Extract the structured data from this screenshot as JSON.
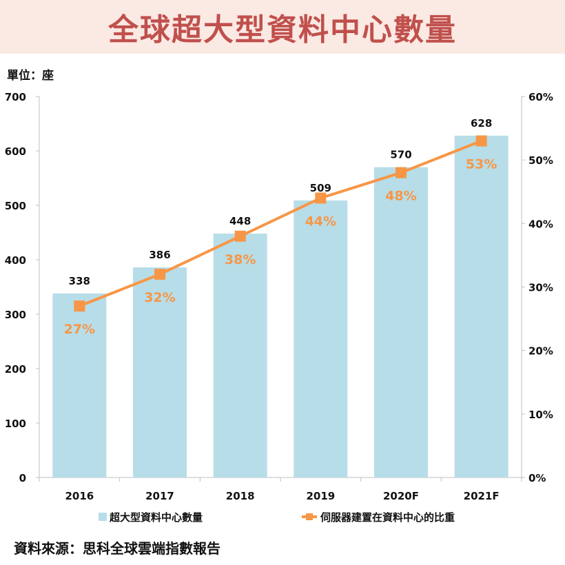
{
  "header": {
    "title": "全球超大型資料中心數量"
  },
  "unit_label": "單位：座",
  "source": "資料來源：思科全球雲端指數報告",
  "colors": {
    "bar": "#b7dde8",
    "line": "#f79646",
    "banner_bg": "#fbe9e3",
    "title": "#c0504d"
  },
  "chart_data": {
    "type": "bar",
    "categories": [
      "2016",
      "2017",
      "2018",
      "2019",
      "2020F",
      "2021F"
    ],
    "series": [
      {
        "name": "超大型資料中心數量",
        "type": "bar",
        "axis": "left",
        "values": [
          338,
          386,
          448,
          509,
          570,
          628
        ]
      },
      {
        "name": "伺服器建置在資料中心的比重",
        "type": "line",
        "axis": "right",
        "values": [
          27,
          32,
          38,
          44,
          48,
          53
        ],
        "labels": [
          "27%",
          "32%",
          "38%",
          "44%",
          "48%",
          "53%"
        ]
      }
    ],
    "y_left": {
      "lim": [
        0,
        700
      ],
      "ticks": [
        "0",
        "100",
        "200",
        "300",
        "400",
        "500",
        "600",
        "700"
      ]
    },
    "y_right": {
      "lim": [
        0,
        60
      ],
      "ticks": [
        "0%",
        "10%",
        "20%",
        "30%",
        "40%",
        "50%",
        "60%"
      ]
    },
    "legend_position": "bottom",
    "grid": false
  }
}
